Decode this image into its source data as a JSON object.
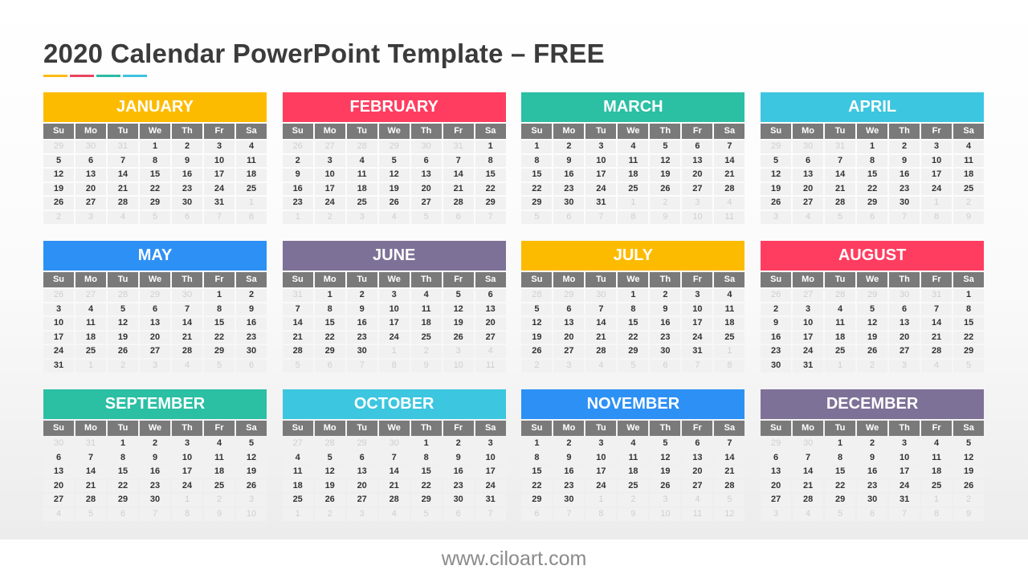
{
  "title": "2020 Calendar PowerPoint Template – FREE",
  "accent_bars": [
    "#FDB913",
    "#E8445F",
    "#2BBBA5",
    "#3DC3E0"
  ],
  "day_names": [
    "Su",
    "Mo",
    "Tu",
    "We",
    "Th",
    "Fr",
    "Sa"
  ],
  "months": [
    {
      "name": "JANUARY",
      "color": "#FDBB00",
      "weeks": [
        "29 30 31 1 2 3 4",
        "5 6 7 8 9 10 11",
        "12 13 14 15 16 17 18",
        "19 20 21 22 23 24 25",
        "26 27 28 29 30 31 1",
        "2 3 4 5 6 7 8"
      ]
    },
    {
      "name": "FEBRUARY",
      "color": "#FF3D60",
      "weeks": [
        "26 27 28 29 30 31 1",
        "2 3 4 5 6 7 8",
        "9 10 11 12 13 14 15",
        "16 17 18 19 20 21 22",
        "23 24 25 26 27 28 29",
        "1 2 3 4 5 6 7"
      ]
    },
    {
      "name": "MARCH",
      "color": "#2BBFA4",
      "weeks": [
        "1 2 3 4 5 6 7",
        "8 9 10 11 12 13 14",
        "15 16 17 18 19 20 21",
        "22 23 24 25 26 27 28",
        "29 30 31 1 2 3 4",
        "5 6 7 8 9 10 11"
      ]
    },
    {
      "name": "APRIL",
      "color": "#3CC6E0",
      "weeks": [
        "29 30 31 1 2 3 4",
        "5 6 7 8 9 10 11",
        "12 13 14 15 16 17 18",
        "19 20 21 22 23 24 25",
        "26 27 28 29 30 1 2",
        "3 4 5 6 7 8 9"
      ]
    },
    {
      "name": "MAY",
      "color": "#2D90F5",
      "weeks": [
        "26 27 28 29 30 1 2",
        "3 4 5 6 7 8 9",
        "10 11 12 13 14 15 16",
        "17 18 19 20 21 22 23",
        "24 25 26 27 28 29 30",
        "31 1 2 3 4 5 6"
      ]
    },
    {
      "name": "JUNE",
      "color": "#7E7197",
      "weeks": [
        "31 1 2 3 4 5 6",
        "7 8 9 10 11 12 13",
        "14 15 16 17 18 19 20",
        "21 22 23 24 25 26 27",
        "28 29 30 1 2 3 4",
        "5 6 7 8 9 10 11"
      ]
    },
    {
      "name": "JULY",
      "color": "#FDBB00",
      "weeks": [
        "28 29 30 1 2 3 4",
        "5 6 7 8 9 10 11",
        "12 13 14 15 16 17 18",
        "19 20 21 22 23 24 25",
        "26 27 28 29 30 31 1",
        "2 3 4 5 6 7 8"
      ]
    },
    {
      "name": "AUGUST",
      "color": "#FF3D60",
      "weeks": [
        "26 27 28 29 30 31 1",
        "2 3 4 5 6 7 8",
        "9 10 11 12 13 14 15",
        "16 17 18 19 20 21 22",
        "23 24 25 26 27 28 29",
        "30 31 1 2 3 4 5"
      ]
    },
    {
      "name": "SEPTEMBER",
      "color": "#2BBFA4",
      "weeks": [
        "30 31 1 2 3 4 5",
        "6 7 8 9 10 11 12",
        "13 14 15 16 17 18 19",
        "20 21 22 23 24 25 26",
        "27 28 29 30 1 2 3",
        "4 5 6 7 8 9 10"
      ]
    },
    {
      "name": "OCTOBER",
      "color": "#3CC6E0",
      "weeks": [
        "27 28 29 30 1 2 3",
        "4 5 6 7 8 9 10",
        "11 12 13 14 15 16 17",
        "18 19 20 21 22 23 24",
        "25 26 27 28 29 30 31",
        "1 2 3 4 5 6 7"
      ]
    },
    {
      "name": "NOVEMBER",
      "color": "#2D90F5",
      "weeks": [
        "1 2 3 4 5 6 7",
        "8 9 10 11 12 13 14",
        "15 16 17 18 19 20 21",
        "22 23 24 25 26 27 28",
        "29 30 1 2 3 4 5",
        "6 7 8 9 10 11 12"
      ]
    },
    {
      "name": "DECEMBER",
      "color": "#7E7197",
      "weeks": [
        "29 30 1 2 3 4 5",
        "6 7 8 9 10 11 12",
        "13 14 15 16 17 18 19",
        "20 21 22 23 24 25 26",
        "27 28 29 30 31 1 2",
        "3 4 5 6 7 8 9"
      ]
    }
  ],
  "footer": "www.ciloart.com"
}
